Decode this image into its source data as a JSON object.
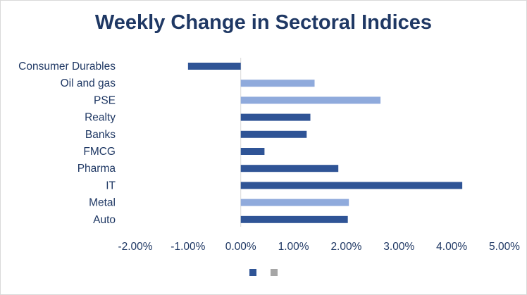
{
  "chart_data": {
    "type": "bar",
    "orientation": "horizontal",
    "title": "Weekly Change in Sectoral Indices",
    "categories": [
      "Consumer Durables",
      "Oil and gas",
      "PSE",
      "Realty",
      "Banks",
      "FMCG",
      "Pharma",
      "IT",
      "Metal",
      "Auto"
    ],
    "values": [
      -1.0,
      1.4,
      2.65,
      1.32,
      1.25,
      0.45,
      1.85,
      4.2,
      2.05,
      2.03
    ],
    "bar_colors": [
      "#2f5496",
      "#8faadc",
      "#8faadc",
      "#2f5496",
      "#2f5496",
      "#2f5496",
      "#2f5496",
      "#2f5496",
      "#8faadc",
      "#2f5496"
    ],
    "xlim": [
      -2.0,
      5.0
    ],
    "xticks": [
      -2,
      -1,
      0,
      1,
      2,
      3,
      4,
      5
    ],
    "xtick_labels": [
      "-2.00%",
      "-1.00%",
      "0.00%",
      "1.00%",
      "2.00%",
      "3.00%",
      "4.00%",
      "5.00%"
    ],
    "xlabel": "",
    "ylabel": "",
    "grid": false,
    "legend": {
      "placement": "bottom",
      "entries": [
        {
          "name": "",
          "color": "#2f5496"
        },
        {
          "name": "",
          "color": "#a6a6a6"
        }
      ]
    }
  }
}
